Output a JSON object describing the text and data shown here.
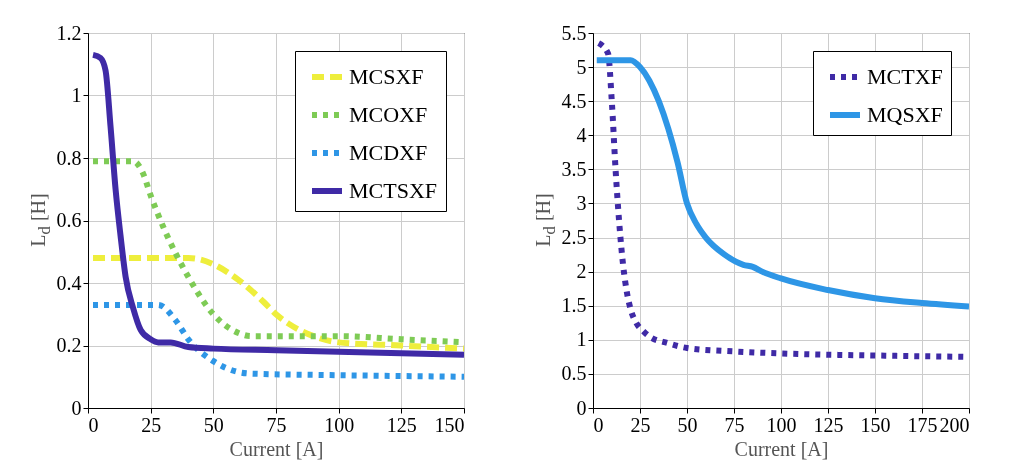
{
  "chart_data": [
    {
      "type": "line",
      "xlabel": "Current [A]",
      "ylabel": "L$_{d}$ [H]",
      "xlim": [
        0,
        150
      ],
      "ylim": [
        0,
        1.2
      ],
      "xticks": [
        0,
        25,
        50,
        75,
        100,
        125,
        150
      ],
      "yticks": [
        0,
        0.2,
        0.4,
        0.6,
        0.8,
        1,
        1.2
      ],
      "grid": true,
      "legend": "top right",
      "series": [
        {
          "name": "MCSXF",
          "color": "#eeee3c",
          "line_style": "dashed",
          "x": [
            2,
            20,
            40,
            45,
            50,
            60,
            70,
            75,
            80,
            90,
            100,
            125,
            150
          ],
          "values": [
            0.48,
            0.48,
            0.48,
            0.475,
            0.46,
            0.41,
            0.34,
            0.3,
            0.27,
            0.23,
            0.21,
            0.2,
            0.19
          ]
        },
        {
          "name": "MCOXF",
          "color": "#7ecb55",
          "line_style": "dotted",
          "x": [
            2,
            18,
            22,
            25,
            30,
            40,
            50,
            60,
            65,
            75,
            100,
            125,
            150
          ],
          "values": [
            0.79,
            0.79,
            0.75,
            0.68,
            0.58,
            0.42,
            0.3,
            0.24,
            0.23,
            0.23,
            0.23,
            0.22,
            0.21
          ]
        },
        {
          "name": "MCDXF",
          "color": "#2e96e6",
          "line_style": "dotted",
          "x": [
            2,
            25,
            28,
            35,
            40,
            50,
            60,
            65,
            100,
            150
          ],
          "values": [
            0.33,
            0.33,
            0.33,
            0.28,
            0.22,
            0.15,
            0.115,
            0.11,
            0.105,
            0.1
          ]
        },
        {
          "name": "MCTSXF",
          "color": "#3f2aa6",
          "line_style": "solid",
          "x": [
            2,
            5,
            7,
            9,
            11,
            13,
            15,
            18,
            21,
            25,
            28,
            33,
            40,
            50,
            75,
            100,
            125,
            150
          ],
          "values": [
            1.13,
            1.12,
            1.08,
            0.9,
            0.7,
            0.55,
            0.42,
            0.32,
            0.25,
            0.22,
            0.21,
            0.21,
            0.195,
            0.19,
            0.185,
            0.18,
            0.175,
            0.17
          ]
        }
      ]
    },
    {
      "type": "line",
      "xlabel": "Current [A]",
      "ylabel": "L$_{d}$ [H]",
      "xlim": [
        0,
        200
      ],
      "ylim": [
        0,
        5.5
      ],
      "xticks": [
        0,
        25,
        50,
        75,
        100,
        125,
        150,
        175,
        200
      ],
      "yticks": [
        0,
        0.5,
        1,
        1.5,
        2,
        2.5,
        3,
        3.5,
        4,
        4.5,
        5,
        5.5
      ],
      "grid": true,
      "legend": "top right",
      "series": [
        {
          "name": "MCTXF",
          "color": "#3f2aa6",
          "line_style": "dotted",
          "x": [
            3,
            8,
            10,
            12,
            14,
            16,
            18,
            20,
            23,
            27,
            30,
            40,
            50,
            75,
            100,
            150,
            200
          ],
          "values": [
            5.35,
            5.2,
            4.5,
            3.5,
            2.7,
            2.1,
            1.7,
            1.45,
            1.25,
            1.12,
            1.05,
            0.95,
            0.88,
            0.83,
            0.8,
            0.77,
            0.75
          ]
        },
        {
          "name": "MQSXF",
          "color": "#2e96e6",
          "line_style": "solid",
          "x": [
            2,
            20,
            25,
            30,
            35,
            40,
            45,
            50,
            55,
            60,
            70,
            80,
            85,
            90,
            100,
            125,
            150,
            175,
            200
          ],
          "values": [
            5.1,
            5.1,
            5.0,
            4.8,
            4.5,
            4.1,
            3.6,
            3.0,
            2.7,
            2.5,
            2.25,
            2.1,
            2.07,
            2.0,
            1.9,
            1.73,
            1.61,
            1.54,
            1.49
          ]
        }
      ]
    }
  ]
}
